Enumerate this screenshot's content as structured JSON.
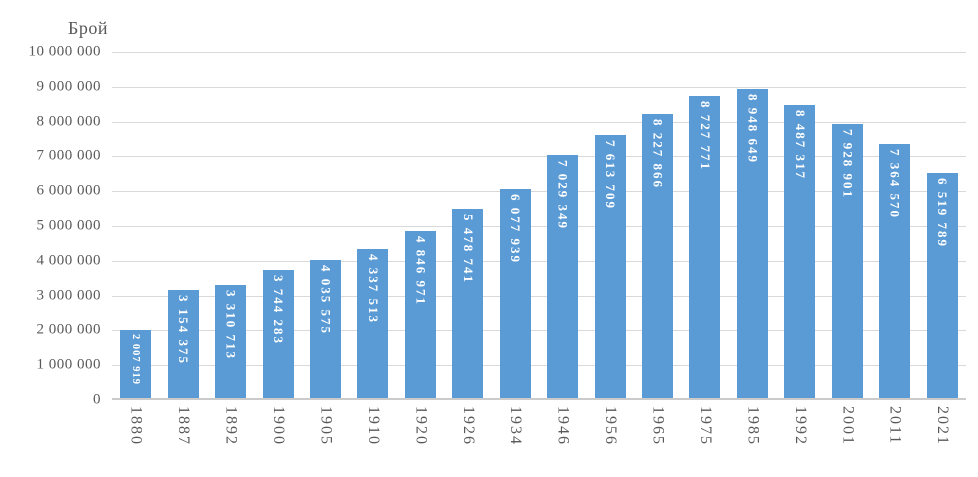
{
  "chart": {
    "axis_title": "Брой"
  },
  "chart_data": {
    "type": "bar",
    "title": "Брой",
    "xlabel": "",
    "ylabel": "Брой",
    "categories": [
      "1880",
      "1887",
      "1892",
      "1900",
      "1905",
      "1910",
      "1920",
      "1926",
      "1934",
      "1946",
      "1956",
      "1965",
      "1975",
      "1985",
      "1992",
      "2001",
      "2011",
      "2021"
    ],
    "values": [
      2007919,
      3154375,
      3310713,
      3744283,
      4035575,
      4337513,
      4846971,
      5478741,
      6077939,
      7029349,
      7613709,
      8227866,
      8727771,
      8948649,
      8487317,
      7928901,
      7364570,
      6519789
    ],
    "bar_labels": [
      "2 007 919",
      "3 154 375",
      "3 310 713",
      "3 744 283",
      "4 035 575",
      "4 337 513",
      "4 846 971",
      "5 478 741",
      "6 077 939",
      "7 029 349",
      "7 613 709",
      "8 227 866",
      "8 727 771",
      "8 948 649",
      "8 487 317",
      "7 928 901",
      "7 364 570",
      "6 519 789"
    ],
    "ylim": [
      0,
      10000000
    ],
    "ytick_step": 1000000,
    "ytick_values": [
      0,
      1000000,
      2000000,
      3000000,
      4000000,
      5000000,
      6000000,
      7000000,
      8000000,
      9000000,
      10000000
    ],
    "ytick_labels": [
      "0",
      "1 000 000",
      "2 000 000",
      "3 000 000",
      "4 000 000",
      "5 000 000",
      "6 000 000",
      "7 000 000",
      "8 000 000",
      "9 000 000",
      "10 000 000"
    ],
    "grid": true,
    "legend": false,
    "label_position": "inside-end-vertical",
    "colors": {
      "bar": "#5B9BD5",
      "bar_label": "#FFFFFF",
      "axis_text": "#595959",
      "gridline": "#D9D9D9",
      "axis_line": "#CBCBCB",
      "background": "#FFFFFF"
    }
  }
}
